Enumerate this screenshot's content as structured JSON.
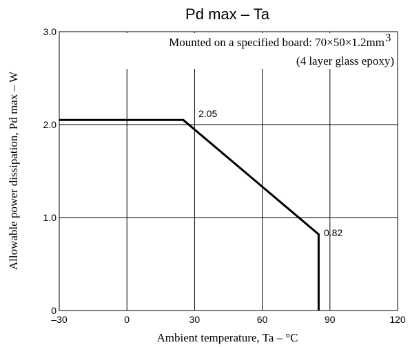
{
  "chart_data": {
    "type": "line",
    "title": "Pd max – Ta",
    "xlabel": "Ambient temperature, Ta – °C",
    "ylabel": "Allowable power dissipation, Pd max – W",
    "xlim": [
      -30,
      120
    ],
    "ylim": [
      0,
      3.0
    ],
    "xticks": [
      -30,
      0,
      30,
      60,
      90,
      120
    ],
    "xtick_labels": [
      "–30",
      "0",
      "30",
      "60",
      "90",
      "120"
    ],
    "yticks": [
      0,
      1.0,
      2.0,
      3.0
    ],
    "ytick_labels": [
      "0",
      "1.0",
      "2.0",
      "3.0"
    ],
    "grid": true,
    "series": [
      {
        "x": [
          -30,
          25,
          85,
          85
        ],
        "y": [
          2.05,
          2.05,
          0.82,
          0
        ]
      }
    ],
    "annotations": {
      "board_note_line1": "Mounted on a specified board: 70×50×1.2mm",
      "board_note_sup": "3",
      "board_note_line2": "(4 layer glass epoxy)",
      "label_205": "2.05",
      "label_082": "0.82"
    },
    "colors": {
      "line": "#000000",
      "grid": "#000000"
    }
  }
}
